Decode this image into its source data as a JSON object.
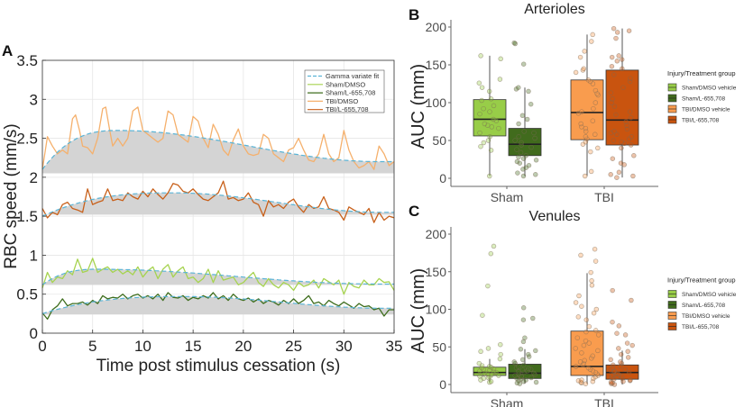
{
  "chart_data": [
    {
      "panel": "A",
      "type": "line",
      "title": "",
      "xlabel": "Time post stimulus cessation (s)",
      "ylabel": "RBC speed (mm/s)",
      "xlim": [
        0,
        35
      ],
      "ylim": [
        0,
        3.5
      ],
      "xticks": [
        "0",
        "5",
        "10",
        "15",
        "20",
        "25",
        "30",
        "35"
      ],
      "yticks": [
        "0",
        "0.5",
        "1",
        "1.5",
        "2",
        "2.5",
        "3",
        "3.5"
      ],
      "grid": true,
      "legend_position": "top-right",
      "legend": [
        "Gamma variate fit",
        "Sham/DMSO",
        "Sham/L-655,708",
        "TBI/DMSO",
        "TBI/L-655,708"
      ],
      "colors": {
        "fit": "#5ab4d6",
        "sham_dmso": "#a6d34f",
        "sham_l655": "#3f6e1e",
        "tbi_dmso": "#f5b06c",
        "tbi_l655": "#c8601a",
        "fill": "#d4d4d4"
      },
      "series": [
        {
          "name": "TBI/DMSO",
          "baseline": 2.05,
          "fit_peak": 2.6,
          "fit_peak_time": 7.5,
          "fit_start": 2.1,
          "fit_end": 2.2,
          "x": [
            0,
            0.5,
            1,
            1.5,
            2,
            2.5,
            3,
            3.3,
            3.7,
            4,
            4.5,
            5,
            5.5,
            6,
            6.3,
            6.7,
            7,
            7.5,
            8,
            8.5,
            9,
            9.5,
            10,
            10.5,
            11,
            11.5,
            12,
            12.5,
            13,
            13.5,
            14,
            14.5,
            15,
            15.5,
            16,
            16.5,
            17,
            17.5,
            18,
            18.5,
            19,
            19.5,
            20,
            20.5,
            21,
            21.5,
            22,
            22.5,
            23,
            23.5,
            24,
            24.5,
            25,
            25.5,
            26,
            26.5,
            27,
            27.5,
            28,
            28.5,
            29,
            29.5,
            30,
            30.5,
            31,
            31.5,
            32,
            32.5,
            33,
            33.5,
            34,
            34.5,
            35
          ],
          "values": [
            2.1,
            2.52,
            2.4,
            2.3,
            2.35,
            2.3,
            2.75,
            2.8,
            2.6,
            2.4,
            2.38,
            2.3,
            2.5,
            2.88,
            2.9,
            2.6,
            2.4,
            2.5,
            2.4,
            2.5,
            2.85,
            2.9,
            2.6,
            2.55,
            2.5,
            2.45,
            2.5,
            2.85,
            2.8,
            2.55,
            2.5,
            2.45,
            2.78,
            2.72,
            2.5,
            2.38,
            2.68,
            2.55,
            2.35,
            2.28,
            2.48,
            2.62,
            2.4,
            2.3,
            2.28,
            2.3,
            2.55,
            2.5,
            2.3,
            2.25,
            2.2,
            2.35,
            2.38,
            2.5,
            2.35,
            2.22,
            2.2,
            2.3,
            2.55,
            2.3,
            2.2,
            2.25,
            2.6,
            2.35,
            2.2,
            2.12,
            2.15,
            2.2,
            2.1,
            2.4,
            2.3,
            2.15,
            2.2
          ]
        },
        {
          "name": "TBI/L-655,708",
          "baseline": 1.52,
          "fit_peak": 1.8,
          "fit_peak_time": 13,
          "fit_start": 1.5,
          "fit_end": 1.55,
          "x": [
            0,
            0.5,
            1,
            1.5,
            2,
            2.5,
            3,
            3.5,
            4,
            4.5,
            5,
            5.5,
            6,
            6.5,
            7,
            7.5,
            8,
            8.5,
            9,
            9.5,
            10,
            10.5,
            11,
            11.5,
            12,
            12.5,
            13,
            13.5,
            14,
            14.5,
            15,
            15.5,
            16,
            16.5,
            17,
            17.5,
            18,
            18.5,
            19,
            19.5,
            20,
            20.5,
            21,
            21.5,
            22,
            22.5,
            23,
            23.5,
            24,
            24.5,
            25,
            25.5,
            26,
            26.5,
            27,
            27.5,
            28,
            28.5,
            29,
            29.5,
            30,
            30.5,
            31,
            31.5,
            32,
            32.5,
            33,
            33.5,
            34,
            34.5,
            35
          ],
          "values": [
            1.6,
            1.48,
            1.55,
            1.52,
            1.65,
            1.68,
            1.6,
            1.58,
            1.55,
            1.85,
            1.65,
            1.68,
            1.7,
            1.85,
            1.7,
            1.72,
            1.7,
            1.8,
            1.75,
            1.72,
            1.82,
            1.75,
            1.85,
            1.78,
            1.72,
            1.8,
            1.92,
            1.9,
            1.82,
            1.8,
            1.85,
            1.78,
            1.72,
            1.7,
            1.75,
            1.8,
            1.95,
            1.72,
            1.74,
            1.7,
            1.72,
            1.8,
            1.68,
            1.65,
            1.5,
            1.7,
            1.62,
            1.65,
            1.6,
            1.68,
            1.72,
            1.62,
            1.55,
            1.65,
            1.6,
            1.62,
            1.75,
            1.6,
            1.58,
            1.55,
            1.45,
            1.62,
            1.58,
            1.55,
            1.52,
            1.6,
            1.42,
            1.55,
            1.45,
            1.5,
            1.48
          ]
        },
        {
          "name": "Sham/DMSO",
          "baseline": 0.62,
          "fit_peak": 0.82,
          "fit_peak_time": 5.5,
          "fit_start": 0.62,
          "fit_end": 0.63,
          "x": [
            0,
            0.5,
            1,
            1.5,
            2,
            2.5,
            3,
            3.5,
            4,
            4.5,
            5,
            5.5,
            6,
            6.5,
            7,
            7.5,
            8,
            8.5,
            9,
            9.5,
            10,
            10.5,
            11,
            11.5,
            12,
            12.5,
            13,
            13.5,
            14,
            14.5,
            15,
            15.5,
            16,
            16.5,
            17,
            17.5,
            18,
            18.5,
            19,
            19.5,
            20,
            20.5,
            21,
            21.5,
            22,
            22.5,
            23,
            23.5,
            24,
            24.5,
            25,
            25.5,
            26,
            26.5,
            27,
            27.5,
            28,
            28.5,
            29,
            29.5,
            30,
            30.5,
            31,
            31.5,
            32,
            32.5,
            33,
            33.5,
            34,
            34.5,
            35
          ],
          "values": [
            0.58,
            0.78,
            0.65,
            0.72,
            0.7,
            0.8,
            0.75,
            0.95,
            0.78,
            0.8,
            0.96,
            0.78,
            0.82,
            0.85,
            0.78,
            0.82,
            0.76,
            0.8,
            0.75,
            0.85,
            0.72,
            0.8,
            0.85,
            0.7,
            0.82,
            0.88,
            0.72,
            0.8,
            0.85,
            0.7,
            0.72,
            0.65,
            0.7,
            0.82,
            0.65,
            0.8,
            0.68,
            0.7,
            0.72,
            0.62,
            0.65,
            0.72,
            0.78,
            0.65,
            0.6,
            0.7,
            0.62,
            0.58,
            0.65,
            0.62,
            0.55,
            0.65,
            0.6,
            0.62,
            0.68,
            0.58,
            0.7,
            0.66,
            0.62,
            0.68,
            0.5,
            0.65,
            0.6,
            0.58,
            0.68,
            0.62,
            0.62,
            0.7,
            0.65,
            0.66,
            0.55
          ]
        },
        {
          "name": "Sham/L-655,708",
          "baseline": 0.24,
          "fit_peak": 0.47,
          "fit_peak_time": 14,
          "fit_start": 0.25,
          "fit_end": 0.32,
          "x": [
            0,
            0.5,
            1,
            1.5,
            2,
            2.5,
            3,
            3.5,
            4,
            4.5,
            5,
            5.5,
            6,
            6.5,
            7,
            7.5,
            8,
            8.5,
            9,
            9.5,
            10,
            10.5,
            11,
            11.5,
            12,
            12.5,
            13,
            13.5,
            14,
            14.5,
            15,
            15.5,
            16,
            16.5,
            17,
            17.5,
            18,
            18.5,
            19,
            19.5,
            20,
            20.5,
            21,
            21.5,
            22,
            22.5,
            23,
            23.5,
            24,
            24.5,
            25,
            25.5,
            26,
            26.5,
            27,
            27.5,
            28,
            28.5,
            29,
            29.5,
            30,
            30.5,
            31,
            31.5,
            32,
            32.5,
            33,
            33.5,
            34,
            34.5,
            35
          ],
          "values": [
            0.26,
            0.18,
            0.3,
            0.35,
            0.44,
            0.35,
            0.38,
            0.38,
            0.4,
            0.36,
            0.42,
            0.38,
            0.48,
            0.44,
            0.46,
            0.45,
            0.5,
            0.44,
            0.48,
            0.5,
            0.45,
            0.48,
            0.44,
            0.5,
            0.42,
            0.52,
            0.46,
            0.45,
            0.48,
            0.42,
            0.46,
            0.44,
            0.48,
            0.45,
            0.52,
            0.44,
            0.48,
            0.42,
            0.5,
            0.44,
            0.42,
            0.45,
            0.4,
            0.44,
            0.38,
            0.42,
            0.4,
            0.36,
            0.42,
            0.38,
            0.44,
            0.38,
            0.42,
            0.48,
            0.38,
            0.4,
            0.35,
            0.42,
            0.38,
            0.35,
            0.4,
            0.36,
            0.32,
            0.38,
            0.34,
            0.35,
            0.3,
            0.32,
            0.22,
            0.3,
            0.3
          ]
        }
      ]
    },
    {
      "panel": "B",
      "type": "box",
      "title": "Arterioles",
      "xlabel": "",
      "ylabel": "AUC (mm)",
      "ylim": [
        0,
        200
      ],
      "yticks": [
        "0",
        "50",
        "100",
        "150",
        "200"
      ],
      "categories": [
        "Sham",
        "TBI"
      ],
      "legend_title": "Injury/Treatment group",
      "legend_position": "right",
      "legend": [
        "Sham/DMSO vehicle",
        "Sham/L-655,708",
        "TBI/DMSO vehicle",
        "TBI/L-655,708"
      ],
      "series": [
        {
          "name": "Sham/DMSO vehicle",
          "category": "Sham",
          "color": "#98cd48",
          "whisker_low": 3,
          "q1": 56,
          "median": 78,
          "q3": 104,
          "whisker_high": 162,
          "points": [
            3,
            37,
            42,
            47,
            50,
            55,
            60,
            66,
            68,
            70,
            72,
            76,
            78,
            85,
            88,
            92,
            96,
            103,
            105,
            115,
            120,
            126,
            131,
            158,
            162
          ]
        },
        {
          "name": "Sham/L-655,708",
          "category": "Sham",
          "color": "#416b1d",
          "whisker_low": 3,
          "q1": 30,
          "median": 45,
          "q3": 66,
          "whisker_high": 120,
          "points": [
            3,
            5,
            7,
            12,
            14,
            17,
            20,
            22,
            24,
            26,
            28,
            30,
            34,
            38,
            41,
            44,
            47,
            50,
            53,
            55,
            60,
            62,
            72,
            78,
            83,
            98,
            115,
            118,
            120,
            151,
            178,
            179
          ]
        },
        {
          "name": "TBI/DMSO vehicle",
          "category": "TBI",
          "color": "#f99c4e",
          "whisker_low": 3,
          "q1": 51,
          "median": 87,
          "q3": 130,
          "whisker_high": 190,
          "points": [
            3,
            9,
            35,
            40,
            45,
            48,
            52,
            55,
            58,
            62,
            66,
            68,
            72,
            76,
            86,
            88,
            92,
            100,
            110,
            112,
            116,
            125,
            128,
            130,
            140,
            143,
            145,
            160,
            168,
            181,
            190
          ]
        },
        {
          "name": "TBI/L-655,708",
          "category": "TBI",
          "color": "#c9540f",
          "whisker_low": 1,
          "q1": 44,
          "median": 77,
          "q3": 143,
          "whisker_high": 198,
          "points": [
            1,
            3,
            5,
            8,
            18,
            20,
            26,
            30,
            40,
            44,
            46,
            48,
            50,
            52,
            55,
            58,
            60,
            62,
            65,
            70,
            75,
            80,
            84,
            88,
            95,
            100,
            105,
            113,
            120,
            128,
            132,
            137,
            145,
            148,
            155,
            157,
            160,
            162,
            185,
            193,
            195,
            198
          ]
        }
      ]
    },
    {
      "panel": "C",
      "type": "box",
      "title": "Venules",
      "xlabel": "",
      "ylabel": "AUC (mm)",
      "ylim": [
        0,
        200
      ],
      "yticks": [
        "0",
        "50",
        "100",
        "150",
        "200"
      ],
      "categories": [
        "Sham",
        "TBI"
      ],
      "legend_title": "Injury/Treatment group",
      "legend_position": "right",
      "legend": [
        "Sham/DMSO vehicle",
        "Sham/L-655,708",
        "TBI/DMSO vehicle",
        "TBI/L-655,708"
      ],
      "series": [
        {
          "name": "Sham/DMSO vehicle",
          "category": "Sham",
          "color": "#98cd48",
          "whisker_low": 3,
          "q1": 12,
          "median": 16,
          "q3": 23,
          "whisker_high": 34,
          "points": [
            3,
            4,
            6,
            8,
            9,
            10,
            11,
            12,
            13,
            14,
            15,
            16,
            17,
            18,
            19,
            20,
            21,
            22,
            23,
            24,
            25,
            28,
            34,
            40,
            44,
            48,
            53,
            92,
            131,
            174,
            184
          ]
        },
        {
          "name": "Sham/L-655,708",
          "category": "Sham",
          "color": "#416b1d",
          "whisker_low": 1,
          "q1": 8,
          "median": 15,
          "q3": 27,
          "whisker_high": 47,
          "points": [
            1,
            2,
            3,
            4,
            5,
            6,
            7,
            8,
            9,
            10,
            11,
            12,
            13,
            14,
            15,
            16,
            17,
            18,
            19,
            20,
            21,
            22,
            24,
            26,
            28,
            30,
            33,
            37,
            40,
            45,
            47,
            57,
            62,
            86,
            88,
            102
          ]
        },
        {
          "name": "TBI/DMSO vehicle",
          "category": "TBI",
          "color": "#f99c4e",
          "whisker_low": 1,
          "q1": 12,
          "median": 24,
          "q3": 71,
          "whisker_high": 148,
          "points": [
            1,
            2,
            3,
            4,
            5,
            6,
            8,
            10,
            12,
            14,
            16,
            18,
            20,
            22,
            24,
            26,
            28,
            30,
            32,
            35,
            38,
            42,
            45,
            48,
            52,
            55,
            58,
            62,
            66,
            70,
            72,
            77,
            86,
            90,
            95,
            100,
            104,
            109,
            118,
            132,
            138,
            149,
            164,
            172,
            180
          ]
        },
        {
          "name": "TBI/L-655,708",
          "category": "TBI",
          "color": "#c9540f",
          "whisker_low": 0,
          "q1": 7,
          "median": 16,
          "q3": 26,
          "whisker_high": 45,
          "points": [
            0,
            1,
            2,
            3,
            4,
            5,
            6,
            7,
            8,
            9,
            10,
            11,
            12,
            13,
            14,
            15,
            16,
            17,
            18,
            19,
            20,
            22,
            24,
            26,
            28,
            30,
            33,
            36,
            40,
            44,
            48,
            52,
            55,
            66,
            68,
            78,
            83,
            112,
            125
          ]
        }
      ]
    }
  ]
}
